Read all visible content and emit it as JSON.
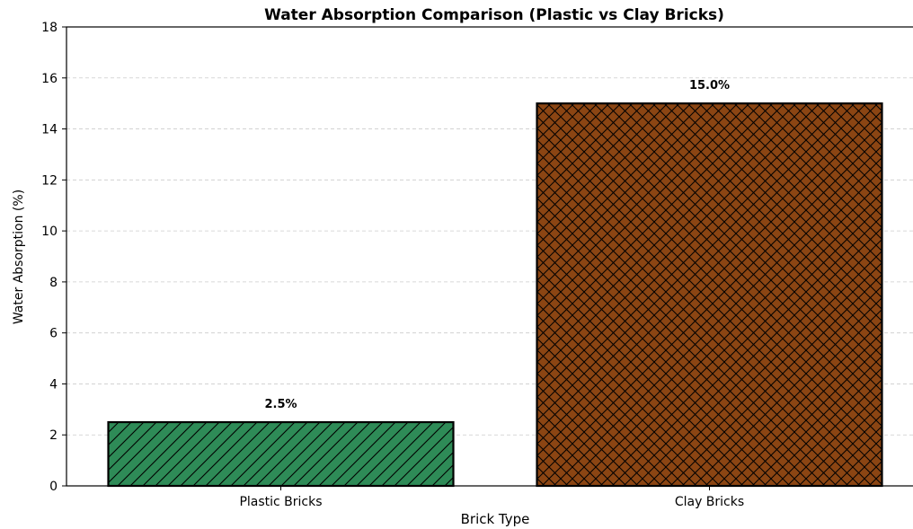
{
  "chart_data": {
    "type": "bar",
    "title": "Water Absorption Comparison (Plastic vs Clay Bricks)",
    "xlabel": "Brick Type",
    "ylabel": "Water Absorption (%)",
    "ylim": [
      0,
      18
    ],
    "yticks": [
      0,
      2,
      4,
      6,
      8,
      10,
      12,
      14,
      16,
      18
    ],
    "grid": "y-dashed",
    "categories": [
      "Plastic Bricks",
      "Clay Bricks"
    ],
    "values": [
      2.5,
      15.0
    ],
    "data_labels": [
      "2.5%",
      "15.0%"
    ],
    "colors": [
      "#2e8b57",
      "#8b4513"
    ],
    "hatches": [
      "diagonal",
      "crosshatch"
    ],
    "edge_color": "#000000"
  }
}
